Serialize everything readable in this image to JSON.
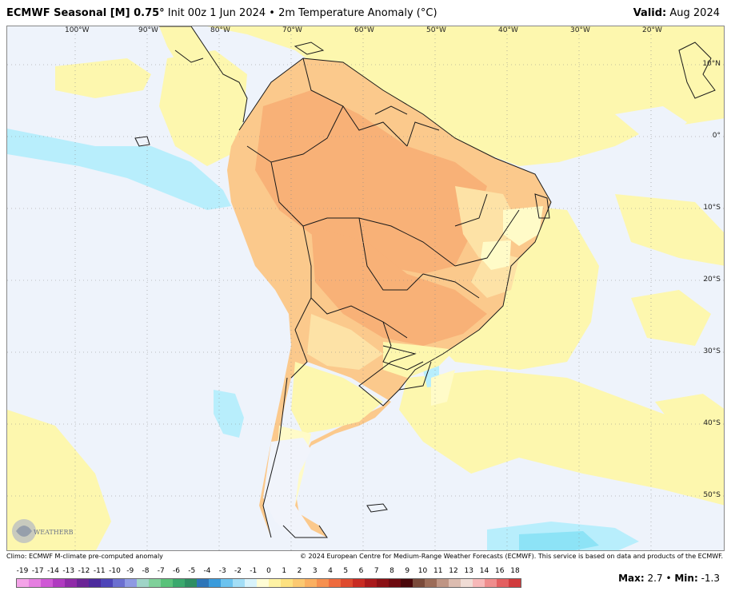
{
  "header": {
    "model": "ECMWF Seasonal [M] 0.75",
    "degree": "°",
    "init": "Init 00z 1 Jun 2024",
    "bullet": "•",
    "product": "2m Temperature Anomaly (°C)",
    "valid_label": "Valid:",
    "valid_value": "Aug 2024"
  },
  "map": {
    "longitude_labels": [
      "100°W",
      "90°W",
      "80°W",
      "70°W",
      "60°W",
      "50°W",
      "40°W",
      "30°W",
      "20°W"
    ],
    "latitude_labels": [
      "10°N",
      "0°",
      "10°S",
      "20°S",
      "30°S",
      "40°S",
      "50°S"
    ],
    "colors": {
      "ocean": "#eef3fb",
      "light_yellow": "#fdf7ae",
      "pale_yellow": "#fffbc8",
      "light_orange": "#fde2a6",
      "orange": "#fbc98c",
      "dark_orange": "#f8b177",
      "light_blue": "#b8eefc",
      "cyan": "#8de3f6",
      "borders": "#1a1a1a"
    }
  },
  "logo": {
    "text": "WEATHERBELL"
  },
  "footer": {
    "climo": "Climo: ECMWF M-climate pre-computed anomaly",
    "copyright": "© 2024 European Centre for Medium-Range Weather Forecasts (ECMWF). This service is based on data and products of the ECMWF.",
    "max_label": "Max:",
    "max_value": "2.7",
    "min_label": "Min:",
    "min_value": "-1.3",
    "separator": "•"
  },
  "legend": {
    "labels": [
      "-19",
      "-17",
      "-14",
      "-13",
      "-12",
      "-11",
      "-10",
      "-9",
      "-8",
      "-7",
      "-6",
      "-5",
      "-4",
      "-3",
      "-2",
      "-1",
      "0",
      "1",
      "2",
      "3",
      "4",
      "5",
      "6",
      "7",
      "8",
      "9",
      "10",
      "11",
      "12",
      "13",
      "14",
      "16",
      "18"
    ],
    "colors": [
      "#f4a3e8",
      "#e57ee0",
      "#cf58d5",
      "#b03ac0",
      "#8f2aa8",
      "#6b2496",
      "#4b2a9c",
      "#4d44b8",
      "#6b6fd0",
      "#8e9ae3",
      "#9fd4c7",
      "#7fd09a",
      "#59c27a",
      "#3aa86d",
      "#2e8e63",
      "#2d75b8",
      "#3a9bdb",
      "#6cc3ef",
      "#a3def6",
      "#d8f3fb",
      "#fffdd5",
      "#fef2a4",
      "#fde180",
      "#fcc971",
      "#fbb061",
      "#f6904f",
      "#ee6b3e",
      "#de4a2e",
      "#c82b22",
      "#a9191b",
      "#8a1014",
      "#6d0a0f",
      "#4a070a",
      "#7a4a3a",
      "#9c6c58",
      "#bf9584",
      "#dcbcb0",
      "#f0dcd5",
      "#f7b8b8",
      "#ef8d8d",
      "#e35f60",
      "#d03b3d"
    ]
  }
}
